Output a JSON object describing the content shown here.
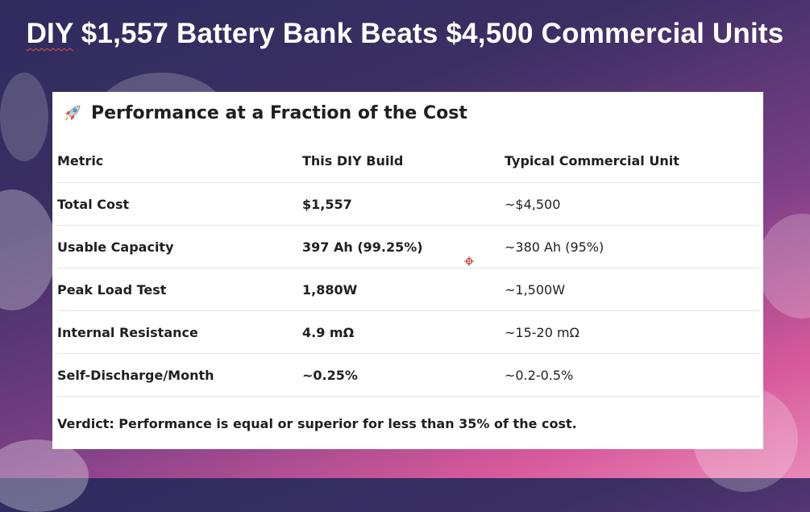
{
  "title": {
    "prefix": "DIY",
    "rest": " $1,557 Battery Bank Beats $4,500 Commercial Units"
  },
  "card": {
    "heading": "Performance at a Fraction of the Cost",
    "heading_icon": "rocket-icon",
    "columns": [
      "Metric",
      "This DIY Build",
      "Typical Commercial Unit"
    ],
    "rows": [
      {
        "metric": "Total Cost",
        "diy": "$1,557",
        "commercial": "~$4,500"
      },
      {
        "metric": "Usable Capacity",
        "diy": "397 Ah (99.25%)",
        "commercial": "~380 Ah (95%)"
      },
      {
        "metric": "Peak Load Test",
        "diy": "1,880W",
        "commercial": "~1,500W"
      },
      {
        "metric": "Internal Resistance",
        "diy": "4.9 mΩ",
        "commercial": "~15-20 mΩ"
      },
      {
        "metric": "Self-Discharge/Month",
        "diy": "~0.25%",
        "commercial": "~0.2-0.5%"
      }
    ],
    "verdict": "Verdict: Performance is equal or superior for less than 35% of the cost."
  },
  "colors": {
    "background_top": "#2f2c5e",
    "background_bottom": "#e889b8",
    "card": "#ffffff",
    "text": "#1f1f1f"
  }
}
